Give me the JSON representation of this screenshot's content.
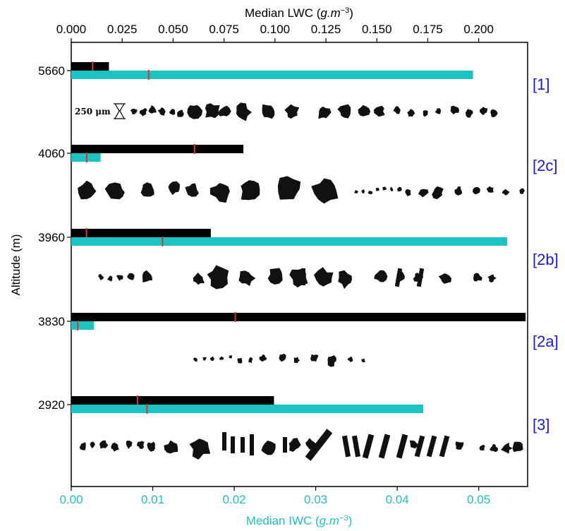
{
  "chart_data": {
    "type": "bar",
    "orientation": "horizontal",
    "y_axis": {
      "label": "Altitude (m)",
      "categories": [
        "5660",
        "4060",
        "3960",
        "3830",
        "2920"
      ]
    },
    "x_axis_bottom": {
      "label": "Median IWC (g.m⁻³)",
      "label_plain": "Median IWC (",
      "label_units": "g.m",
      "label_exp": "−3",
      "label_close": ")",
      "range": [
        0,
        0.056
      ],
      "ticks": [
        0.0,
        0.01,
        0.02,
        0.03,
        0.04,
        0.05
      ],
      "tick_labels": [
        "0.00",
        "0.01",
        "0.02",
        "0.03",
        "0.04",
        "0.05"
      ],
      "color": "#1cc3c3"
    },
    "x_axis_top": {
      "label": "Median LWC (g.m⁻³)",
      "label_plain": "Median LWC (",
      "label_units": "g.m",
      "label_exp": "−3",
      "label_close": ")",
      "range": [
        0,
        0.224
      ],
      "ticks": [
        0.0,
        0.025,
        0.05,
        0.075,
        0.1,
        0.125,
        0.15,
        0.175,
        0.2
      ],
      "tick_labels": [
        "0.000",
        "0.025",
        "0.050",
        "0.075",
        "0.100",
        "0.125",
        "0.150",
        "0.175",
        "0.200"
      ],
      "color": "#000000"
    },
    "series": [
      {
        "name": "LWC",
        "axis": "top",
        "color": "#000000",
        "values": [
          0.0185,
          0.0845,
          0.0685,
          0.223,
          0.0995
        ],
        "markers": [
          0.0105,
          0.0605,
          0.0075,
          0.0805,
          0.0325
        ]
      },
      {
        "name": "IWC",
        "axis": "bottom",
        "color": "#1cc3c3",
        "values": [
          0.0493,
          0.0036,
          0.0535,
          0.0028,
          0.0432
        ],
        "markers": [
          0.0095,
          0.0019,
          0.0112,
          0.0008,
          0.0093
        ]
      }
    ],
    "marker_color": "#e03030",
    "panel_tags": [
      "[1]",
      "[2c]",
      "[2b]",
      "[2a]",
      "[3]"
    ],
    "panel_tag_color": "#1a1adc",
    "scale_bar_label": "250 μm",
    "grid": false
  }
}
